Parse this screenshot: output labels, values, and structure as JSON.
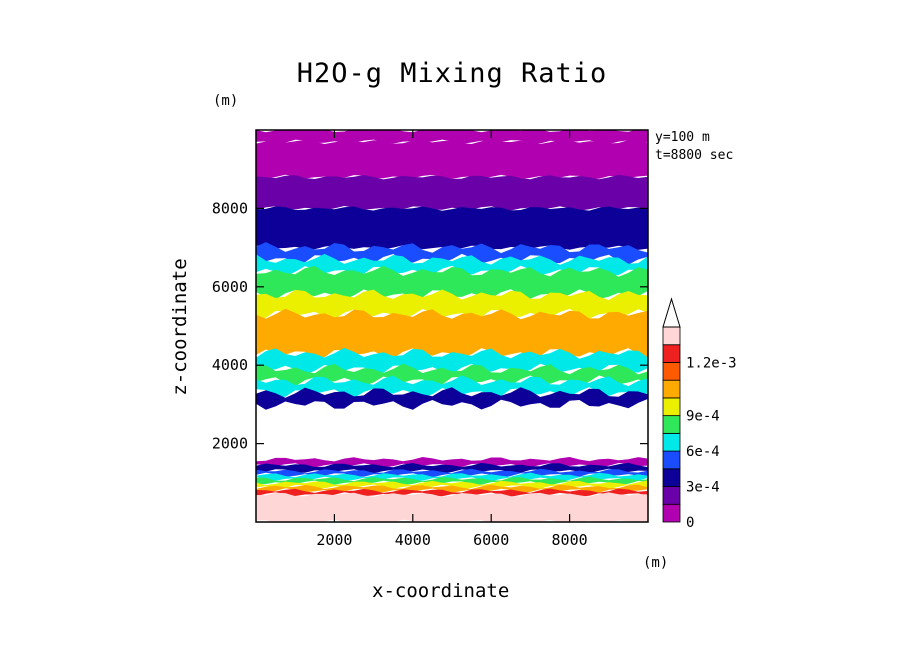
{
  "chart_data": {
    "type": "heatmap",
    "title": "H2O-g Mixing Ratio",
    "xlabel": "x-coordinate",
    "ylabel": "z-coordinate",
    "x_unit": "(m)",
    "y_unit": "(m)",
    "annotation": [
      "y=100 m",
      "t=8800 sec"
    ],
    "xlim": [
      0,
      10000
    ],
    "ylim": [
      0,
      10000
    ],
    "xticks": [
      2000,
      4000,
      6000,
      8000
    ],
    "yticks": [
      2000,
      4000,
      6000,
      8000
    ],
    "colorbar": {
      "levels": [
        0,
        0.00015,
        0.0003,
        0.00045,
        0.0006,
        0.00075,
        0.0009,
        0.00105,
        0.0012
      ],
      "tick_labels": [
        "0",
        "3e-4",
        "6e-4",
        "9e-4",
        "1.2e-3"
      ],
      "colors": [
        "#b000b0",
        "#6a00a8",
        "#0d0099",
        "#1a4dff",
        "#00e8e8",
        "#2ee85a",
        "#eaf000",
        "#ffaa00",
        "#ff5a00",
        "#ee2020",
        "#ffd6d6"
      ]
    },
    "bands": [
      {
        "z": [
          9700,
          10000
        ],
        "level": 0
      },
      {
        "z": [
          8800,
          9700
        ],
        "level": 0
      },
      {
        "z": [
          8000,
          8800
        ],
        "level": 1
      },
      {
        "z": [
          7000,
          8000
        ],
        "level": 2
      },
      {
        "z": [
          6700,
          7000
        ],
        "level": 3
      },
      {
        "z": [
          6400,
          6700
        ],
        "level": 4
      },
      {
        "z": [
          5800,
          6400
        ],
        "level": 5
      },
      {
        "z": [
          5300,
          5800
        ],
        "level": 6
      },
      {
        "z": [
          4300,
          5300
        ],
        "level": 7
      },
      {
        "z": [
          3900,
          4300
        ],
        "level": 4
      },
      {
        "z": [
          3600,
          3900
        ],
        "level": 5
      },
      {
        "z": [
          3300,
          3600
        ],
        "level": 4
      },
      {
        "z": [
          3000,
          3300
        ],
        "level": 2
      },
      {
        "z": [
          1600,
          3000
        ],
        "level": -1
      },
      {
        "z": [
          1450,
          1600
        ],
        "level": 0
      },
      {
        "z": [
          1300,
          1450
        ],
        "level": 2
      },
      {
        "z": [
          1200,
          1300
        ],
        "level": 3
      },
      {
        "z": [
          1100,
          1200
        ],
        "level": 4
      },
      {
        "z": [
          1000,
          1100
        ],
        "level": 5
      },
      {
        "z": [
          900,
          1000
        ],
        "level": 6
      },
      {
        "z": [
          800,
          900
        ],
        "level": 7
      },
      {
        "z": [
          700,
          800
        ],
        "level": 9
      },
      {
        "z": [
          0,
          700
        ],
        "level": 10
      }
    ]
  }
}
